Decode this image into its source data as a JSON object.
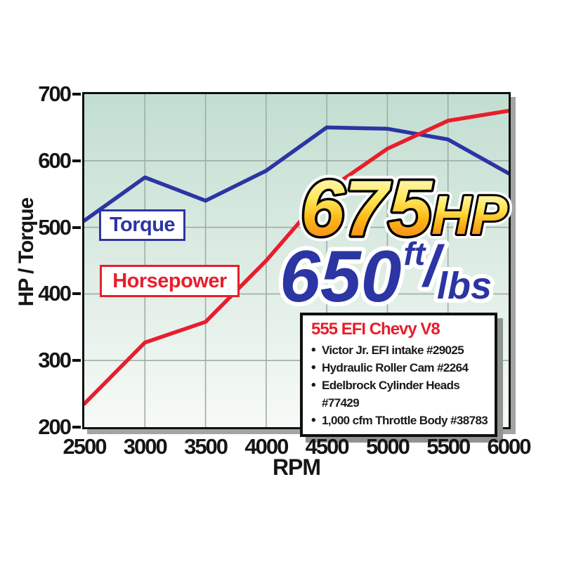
{
  "chart_data": {
    "type": "line",
    "x_label": "RPM",
    "y_label": "HP / Torque",
    "x": [
      2500,
      3000,
      3500,
      4000,
      4500,
      5000,
      5500,
      6000
    ],
    "x_ticks": [
      "2500",
      "3000",
      "3500",
      "4000",
      "4500",
      "5000",
      "5500",
      "6000"
    ],
    "y_ticks": [
      "700",
      "600",
      "500",
      "400",
      "300",
      "200"
    ],
    "xlim": [
      2500,
      6000
    ],
    "ylim": [
      200,
      700
    ],
    "grid": true,
    "legend_position": "inline-boxes-on-plot",
    "series": [
      {
        "name": "Torque",
        "unit": "ft/lbs",
        "color": "#2b35a4",
        "values": [
          510,
          575,
          540,
          585,
          650,
          648,
          632,
          581
        ]
      },
      {
        "name": "Horsepower",
        "unit": "HP",
        "color": "#e81e2c",
        "values": [
          235,
          327,
          358,
          450,
          555,
          618,
          660,
          675
        ]
      }
    ]
  },
  "legend": {
    "torque": "Torque",
    "horsepower": "Horsepower"
  },
  "callouts": {
    "hp_value": "675",
    "hp_unit": "HP",
    "tq_value": "650",
    "tq_unit_numerator": "ft",
    "tq_slash": "/",
    "tq_unit_denominator": "lbs"
  },
  "spec_box": {
    "title": "555 EFI Chevy V8",
    "items": [
      "Victor Jr. EFI intake #29025",
      "Hydraulic Roller Cam #2264",
      "Edelbrock Cylinder Heads #77429",
      "1,000 cfm Throttle Body #38783"
    ]
  },
  "colors": {
    "torque_blue": "#2b35a4",
    "horsepower_red": "#e81e2c",
    "grid": "#9fada7",
    "plot_bg_top": "#c2ded0",
    "plot_bg_bottom": "#f7faf7",
    "gold_top": "#fffef0",
    "gold_mid": "#ffe95a",
    "gold_deep": "#fcb817",
    "gold_bottom": "#f3701e",
    "axis_black": "#101010"
  }
}
